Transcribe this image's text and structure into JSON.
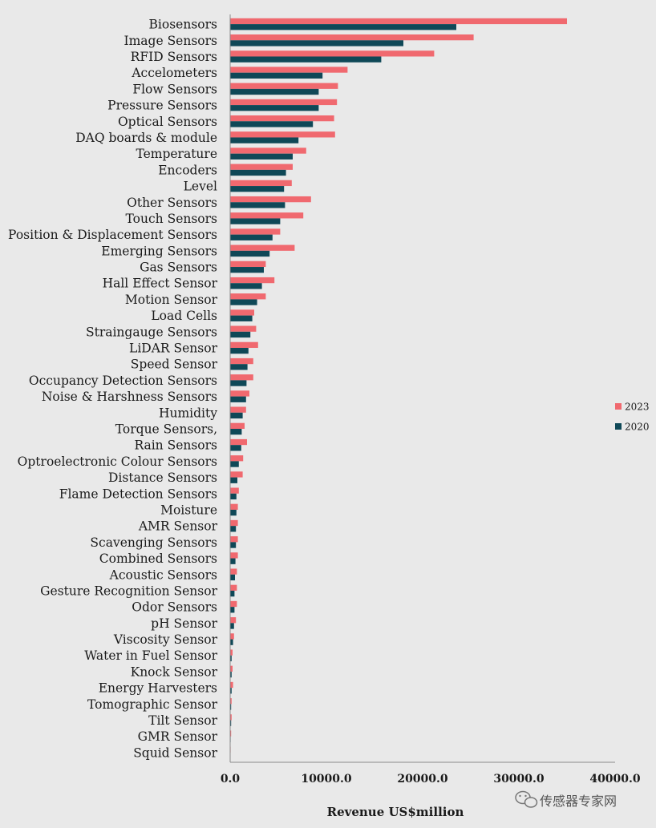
{
  "chart_data": {
    "type": "bar",
    "orientation": "horizontal",
    "title": "",
    "xlabel": "Revenue US$million",
    "ylabel": "",
    "xlim": [
      0,
      40000
    ],
    "xticks": [
      0,
      10000,
      20000,
      30000,
      40000
    ],
    "xtick_labels": [
      "0.0",
      "10000.0",
      "20000.0",
      "30000.0",
      "40000.0"
    ],
    "grid": false,
    "legend_position": "right",
    "categories": [
      "Biosensors",
      "Image Sensors",
      "RFID Sensors",
      "Accelometers",
      "Flow Sensors",
      "Pressure Sensors",
      "Optical Sensors",
      "DAQ boards & module",
      "Temperature",
      "Encoders",
      "Level",
      "Other Sensors",
      "Touch Sensors",
      "Position & Displacement Sensors",
      "Emerging Sensors",
      "Gas Sensors",
      "Hall Effect Sensor",
      "Motion Sensor",
      "Load Cells",
      "Straingauge Sensors",
      "LiDAR Sensor",
      "Speed Sensor",
      "Occupancy Detection Sensors",
      "Noise & Harshness Sensors",
      "Humidity",
      "Torque Sensors,",
      "Rain Sensors",
      "Optroelectronic Colour Sensors",
      "Distance Sensors",
      "Flame Detection Sensors",
      "Moisture",
      "AMR Sensor",
      "Scavenging Sensors",
      "Combined Sensors",
      "Acoustic Sensors",
      "Gesture Recognition Sensor",
      "Odor Sensors",
      "pH Sensor",
      "Viscosity Sensor",
      "Water in Fuel Sensor",
      "Knock Sensor",
      "Energy Harvesters",
      "Tomographic Sensor",
      "Tilt Sensor",
      "GMR Sensor",
      "Squid Sensor"
    ],
    "series": [
      {
        "name": "2023",
        "color": "#f0696f",
        "values": [
          35000,
          25300,
          21200,
          12200,
          11200,
          11100,
          10800,
          10900,
          7900,
          6500,
          6400,
          8400,
          7600,
          5200,
          6700,
          3700,
          4600,
          3700,
          2500,
          2700,
          2900,
          2400,
          2400,
          2000,
          1650,
          1500,
          1750,
          1350,
          1300,
          900,
          800,
          800,
          800,
          800,
          700,
          700,
          700,
          600,
          400,
          250,
          250,
          300,
          150,
          150,
          100,
          50
        ]
      },
      {
        "name": "2020",
        "color": "#0f4857",
        "values": [
          23500,
          18000,
          15700,
          9600,
          9200,
          9200,
          8600,
          7100,
          6500,
          5800,
          5600,
          5700,
          5200,
          4400,
          4100,
          3500,
          3300,
          2800,
          2300,
          2100,
          1900,
          1800,
          1700,
          1650,
          1300,
          1200,
          1150,
          900,
          750,
          650,
          650,
          600,
          600,
          550,
          500,
          450,
          450,
          400,
          300,
          150,
          150,
          150,
          100,
          100,
          50,
          30
        ]
      }
    ]
  },
  "watermark": {
    "text": "传感器专家网",
    "icon": "wechat-icon"
  }
}
